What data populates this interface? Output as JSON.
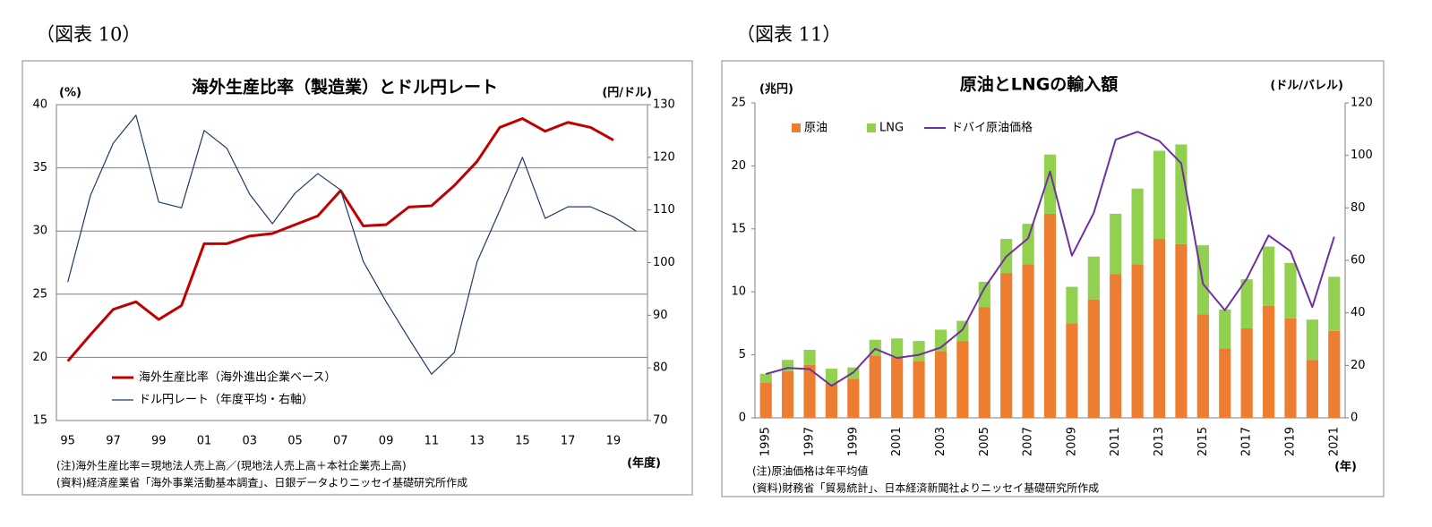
{
  "chart_data": [
    {
      "type": "line",
      "figure_label": "（図表 10）",
      "title": "海外生産比率（製造業）とドル円レート",
      "y_unit": "(%)",
      "y2_unit": "(円/ドル)",
      "x_unit": "(年度)",
      "notes": [
        "(注)海外生産比率＝現地法人売上高／(現地法人売上高＋本社企業売上高)",
        "(資料)経済産業省「海外事業活動基本調査」、日銀データよりニッセイ基礎研究所作成"
      ],
      "categories": [
        "95",
        null,
        "97",
        null,
        "99",
        null,
        "01",
        null,
        "03",
        null,
        "05",
        null,
        "07",
        null,
        "09",
        null,
        "11",
        null,
        "13",
        null,
        "15",
        null,
        "17",
        null,
        "19",
        null
      ],
      "series": [
        {
          "name": "海外生産比率（海外進出企業ベース）",
          "color": "#c00000",
          "width": 3,
          "values": [
            19.7,
            21.8,
            23.8,
            24.4,
            23.0,
            24.1,
            29.0,
            29.0,
            29.6,
            29.8,
            30.5,
            31.2,
            33.2,
            30.4,
            30.5,
            31.9,
            32.0,
            33.6,
            35.5,
            38.2,
            38.9,
            37.9,
            38.6,
            38.2,
            37.2,
            null
          ]
        },
        {
          "name": "ドル円レート（年度平均・右軸）",
          "color": "#1f3864",
          "width": 1.2,
          "axis": "y2",
          "values": [
            96.3,
            112.8,
            122.7,
            128.0,
            111.5,
            110.4,
            125.1,
            121.7,
            113.0,
            107.4,
            113.2,
            116.9,
            113.8,
            100.2,
            92.6,
            85.6,
            78.8,
            82.9,
            100.1,
            109.9,
            120.0,
            108.4,
            110.6,
            110.6,
            108.7,
            106.0
          ]
        }
      ],
      "ylim": [
        15,
        40
      ],
      "yticks": [
        15,
        20,
        25,
        30,
        35,
        40
      ],
      "y2lim": [
        70,
        130
      ],
      "y2ticks": [
        70,
        80,
        90,
        100,
        110,
        120,
        130
      ],
      "grid": true
    },
    {
      "type": "bar",
      "stacked": true,
      "figure_label": "（図表 11）",
      "title": "原油とLNGの輸入額",
      "y_unit": "(兆円)",
      "y2_unit": "(ドル/バレル)",
      "x_unit": "(年)",
      "notes": [
        "(注)原油価格は年平均値",
        "(資料)財務省「貿易統計」、日本経済新聞社よりニッセイ基礎研究所作成"
      ],
      "categories": [
        "1995",
        null,
        "1997",
        null,
        "1999",
        null,
        "2001",
        null,
        "2003",
        null,
        "2005",
        null,
        "2007",
        null,
        "2009",
        null,
        "2011",
        null,
        "2013",
        null,
        "2015",
        null,
        "2017",
        null,
        "2019",
        null,
        "2021"
      ],
      "series": [
        {
          "name": "原油",
          "color": "#ed7d31",
          "values": [
            2.8,
            3.7,
            4.2,
            2.7,
            3.1,
            4.9,
            4.8,
            4.5,
            5.3,
            6.1,
            8.8,
            11.5,
            12.2,
            16.2,
            7.5,
            9.4,
            11.4,
            12.2,
            14.2,
            13.8,
            8.2,
            5.5,
            7.1,
            8.9,
            7.9,
            4.6,
            6.9
          ]
        },
        {
          "name": "LNG",
          "color": "#92d050",
          "values": [
            0.7,
            0.9,
            1.2,
            1.2,
            0.9,
            1.3,
            1.5,
            1.6,
            1.7,
            1.6,
            2.0,
            2.7,
            3.2,
            4.7,
            2.9,
            3.4,
            4.8,
            6.0,
            7.0,
            7.9,
            5.5,
            3.1,
            3.9,
            4.7,
            4.4,
            3.2,
            4.3
          ]
        },
        {
          "name": "ドバイ原油価格",
          "color": "#7030a0",
          "type": "line",
          "width": 2,
          "axis": "y2",
          "values": [
            16.7,
            19.0,
            18.6,
            12.2,
            17.3,
            26.3,
            22.8,
            24.0,
            26.8,
            33.6,
            49.5,
            61.5,
            68.4,
            93.8,
            61.8,
            78.1,
            106.0,
            109.0,
            105.5,
            97.0,
            51.0,
            41.0,
            53.0,
            69.5,
            63.5,
            42.2,
            69.0
          ]
        }
      ],
      "ylim": [
        0,
        25
      ],
      "yticks": [
        0,
        5,
        10,
        15,
        20,
        25
      ],
      "y2lim": [
        0,
        120
      ],
      "y2ticks": [
        0,
        20,
        40,
        60,
        80,
        100,
        120
      ],
      "grid": false
    }
  ]
}
